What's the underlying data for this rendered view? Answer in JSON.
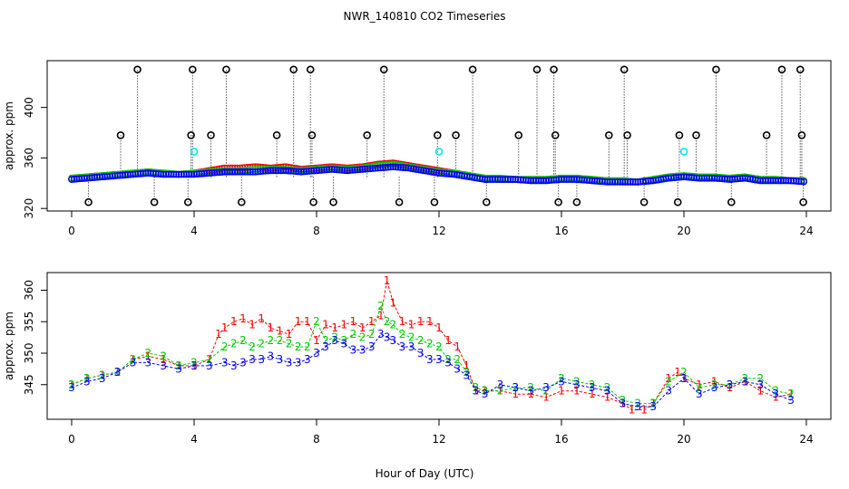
{
  "title": "NWR_140810  CO2 Timeseries",
  "colors": {
    "series1": "#ff0000",
    "series2": "#00cc00",
    "series3": "#0000ff",
    "flagged": "#000000",
    "special": "#00e5ee"
  },
  "chart_data": [
    {
      "type": "scatter",
      "title": "",
      "xlabel": "",
      "ylabel": "approx. ppm",
      "xlim": [
        -0.8,
        24.8
      ],
      "ylim": [
        318,
        437
      ],
      "xticks": [
        0,
        4,
        8,
        12,
        16,
        20,
        24
      ],
      "xtick_labels": [
        "0",
        "4",
        "8",
        "12",
        "16",
        "20",
        "24"
      ],
      "yticks": [
        320,
        360,
        400
      ],
      "ytick_labels": [
        "320",
        "360",
        "400"
      ],
      "hours": [
        0,
        0.5,
        1,
        1.5,
        2,
        2.5,
        3,
        3.5,
        4,
        4.5,
        5,
        5.5,
        6,
        6.5,
        7,
        7.5,
        8,
        8.5,
        9,
        9.5,
        10,
        10.5,
        11,
        11.5,
        12,
        12.5,
        13,
        13.5,
        14,
        14.5,
        15,
        15.5,
        16,
        16.5,
        17,
        17.5,
        18,
        18.5,
        19,
        19.5,
        20,
        20.5,
        21,
        21.5,
        22,
        22.5,
        23,
        23.5,
        24
      ],
      "series": [
        {
          "name": "1",
          "symbol": "o",
          "values": [
            344,
            345,
            346,
            347,
            348,
            349,
            348,
            347,
            348,
            350,
            352,
            352,
            353,
            352,
            353,
            351,
            352,
            353,
            352,
            353,
            355,
            356,
            354,
            352,
            350,
            348,
            346,
            344,
            343,
            343,
            343,
            343,
            344,
            344,
            343,
            342,
            341,
            341,
            343,
            345,
            346,
            344,
            344,
            344,
            345,
            343,
            343,
            342,
            342
          ]
        },
        {
          "name": "2",
          "symbol": "o",
          "values": [
            344,
            345,
            346,
            347,
            348,
            349,
            348,
            347,
            348,
            349,
            350,
            350,
            351,
            351,
            351,
            350,
            351,
            352,
            351,
            352,
            354,
            355,
            353,
            351,
            349,
            348,
            346,
            344,
            344,
            343,
            343,
            343,
            344,
            344,
            343,
            342,
            342,
            341,
            343,
            345,
            346,
            345,
            345,
            344,
            345,
            343,
            343,
            342,
            342
          ]
        },
        {
          "name": "3",
          "symbol": "o",
          "values": [
            343,
            344,
            345,
            346,
            347,
            348,
            347,
            347,
            347,
            348,
            349,
            349,
            349,
            350,
            350,
            349,
            350,
            351,
            350,
            351,
            352,
            353,
            352,
            350,
            348,
            347,
            345,
            343,
            343,
            343,
            342,
            342,
            343,
            343,
            342,
            341,
            341,
            341,
            342,
            344,
            345,
            344,
            344,
            343,
            344,
            342,
            342,
            342,
            341
          ]
        }
      ],
      "flagged_points": {
        "name": "flagged",
        "x": [
          0.55,
          1.6,
          2.15,
          2.7,
          3.8,
          3.9,
          3.95,
          4.55,
          5.05,
          5.55,
          6.7,
          7.25,
          7.8,
          7.85,
          7.9,
          8.55,
          9.65,
          10.2,
          10.7,
          11.85,
          11.95,
          12.55,
          13.1,
          13.55,
          14.6,
          15.2,
          15.75,
          15.8,
          15.9,
          16.5,
          17.55,
          18.05,
          18.15,
          18.7,
          19.8,
          19.85,
          20.4,
          21.05,
          21.55,
          22.7,
          23.2,
          23.8,
          23.85,
          23.9
        ],
        "y": [
          325,
          378,
          430,
          325,
          325,
          378,
          430,
          378,
          430,
          325,
          378,
          430,
          430,
          378,
          325,
          325,
          378,
          430,
          325,
          325,
          378,
          378,
          430,
          325,
          378,
          430,
          430,
          378,
          325,
          325,
          378,
          430,
          378,
          325,
          325,
          378,
          378,
          430,
          325,
          378,
          430,
          430,
          378,
          325
        ]
      },
      "special_points": {
        "name": "special",
        "x": [
          4.0,
          12.0,
          20.0
        ],
        "y": [
          365,
          365,
          365
        ]
      }
    },
    {
      "type": "scatter",
      "title": "",
      "xlabel": "Hour of Day (UTC)",
      "ylabel": "approx. ppm",
      "xlim": [
        -0.8,
        24.8
      ],
      "ylim": [
        339.5,
        362.8
      ],
      "xticks": [
        0,
        4,
        8,
        12,
        16,
        20,
        24
      ],
      "xtick_labels": [
        "0",
        "4",
        "8",
        "12",
        "16",
        "20",
        "24"
      ],
      "yticks": [
        345,
        350,
        355,
        360
      ],
      "ytick_labels": [
        "345",
        "350",
        "355",
        "360"
      ],
      "series": [
        {
          "name": "1",
          "label": "1",
          "x": [
            0,
            0.5,
            1,
            1.5,
            2,
            2.5,
            3,
            3.5,
            4,
            4.5,
            4.8,
            5,
            5.3,
            5.6,
            5.9,
            6.2,
            6.5,
            6.8,
            7.1,
            7.4,
            7.7,
            8,
            8.3,
            8.6,
            8.9,
            9.2,
            9.5,
            9.8,
            10.1,
            10.3,
            10.5,
            10.8,
            11.1,
            11.4,
            11.7,
            12,
            12.3,
            12.6,
            12.9,
            13.2,
            13.5,
            14,
            14.5,
            15,
            15.5,
            16,
            16.5,
            17,
            17.5,
            18,
            18.3,
            18.7,
            19,
            19.5,
            19.8,
            20,
            20.5,
            21,
            21.5,
            22,
            22.5,
            23,
            23.5
          ],
          "values": [
            345,
            346,
            346.5,
            347,
            349,
            349.5,
            349,
            348,
            348,
            349,
            353,
            354,
            355,
            355.5,
            354.5,
            355.5,
            354,
            353.5,
            353,
            355,
            355,
            352,
            354.5,
            354,
            354.5,
            355,
            354,
            355,
            356,
            361.5,
            358,
            355,
            354.5,
            355,
            355,
            354,
            352,
            351,
            348,
            344,
            344,
            344,
            343.5,
            343.5,
            343,
            344,
            344,
            343.5,
            343,
            342,
            341,
            341,
            342,
            346,
            347,
            346,
            345,
            345.5,
            344.5,
            345.5,
            344,
            343,
            343.5
          ]
        },
        {
          "name": "2",
          "label": "2",
          "x": [
            0,
            0.5,
            1,
            1.5,
            2,
            2.5,
            3,
            3.5,
            4,
            4.5,
            5,
            5.3,
            5.6,
            5.9,
            6.2,
            6.5,
            6.8,
            7.1,
            7.4,
            7.7,
            8,
            8.3,
            8.6,
            8.9,
            9.2,
            9.5,
            9.8,
            10.1,
            10.3,
            10.5,
            10.8,
            11.1,
            11.4,
            11.7,
            12,
            12.3,
            12.6,
            12.9,
            13.2,
            13.5,
            14,
            14.5,
            15,
            15.5,
            16,
            16.5,
            17,
            17.5,
            18,
            18.5,
            19,
            19.5,
            20,
            20.5,
            21,
            21.5,
            22,
            22.5,
            23,
            23.5
          ],
          "values": [
            345,
            346,
            346.5,
            347,
            349,
            350,
            349.5,
            348,
            348.5,
            349,
            351,
            351.5,
            352,
            351,
            351.5,
            352,
            352,
            351.5,
            351,
            351,
            355,
            352,
            352.5,
            352,
            353,
            352.5,
            353,
            357.5,
            355,
            354.5,
            353,
            352.5,
            352,
            351.5,
            351,
            349,
            349,
            347,
            344.5,
            344,
            344,
            344.5,
            344.5,
            344,
            346,
            345.5,
            345,
            344.5,
            342.5,
            342,
            342,
            345.5,
            347,
            344.5,
            345,
            345,
            346,
            346,
            344,
            343.5
          ]
        },
        {
          "name": "3",
          "label": "3",
          "x": [
            0,
            0.5,
            1,
            1.5,
            2,
            2.5,
            3,
            3.5,
            4,
            4.5,
            5,
            5.3,
            5.6,
            5.9,
            6.2,
            6.5,
            6.8,
            7.1,
            7.4,
            7.7,
            8,
            8.3,
            8.6,
            8.9,
            9.2,
            9.5,
            9.8,
            10.1,
            10.3,
            10.5,
            10.8,
            11.1,
            11.4,
            11.7,
            12,
            12.3,
            12.6,
            12.9,
            13.2,
            13.5,
            14,
            14.5,
            15,
            15.5,
            16,
            16.5,
            17,
            17.5,
            18,
            18.5,
            19,
            19.5,
            20,
            20.5,
            21,
            21.5,
            22,
            22.5,
            23,
            23.5
          ],
          "values": [
            344.5,
            345.5,
            346,
            347,
            348.5,
            348.5,
            348,
            347.5,
            348,
            348,
            348.5,
            348,
            348.5,
            349,
            349,
            349.5,
            349,
            348.5,
            348.5,
            349,
            350,
            351,
            352,
            351.5,
            350.5,
            350.5,
            351,
            353,
            352.5,
            352,
            351,
            351,
            350,
            349,
            349,
            348.5,
            347.5,
            346.5,
            344,
            343.5,
            345,
            344.5,
            344,
            344.5,
            345.5,
            345,
            344.5,
            344,
            342,
            341.5,
            341.5,
            344,
            346,
            343.5,
            344.5,
            345,
            345.5,
            345,
            343.5,
            342.5
          ]
        }
      ]
    }
  ]
}
